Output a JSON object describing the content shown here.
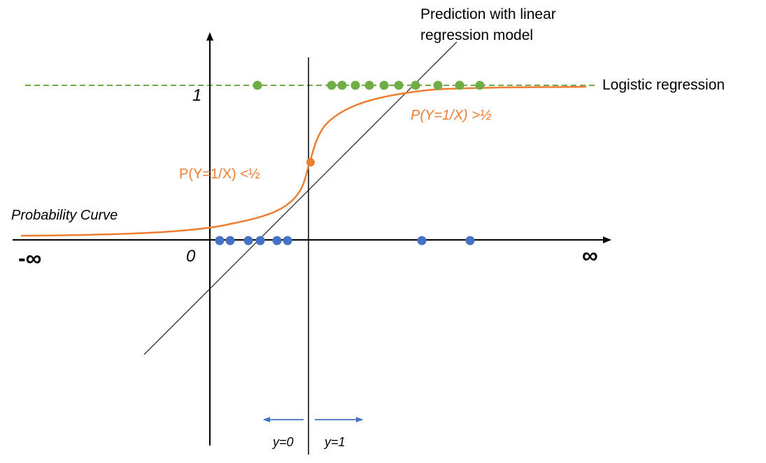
{
  "labels": {
    "linear_model_line1": "Prediction with linear",
    "linear_model_line2": "regression model",
    "logistic_regression": "Logistic regression",
    "y_one": "1",
    "origin": "0",
    "neg_infinity": "-∞",
    "pos_infinity": "∞",
    "probability_curve": "Probability Curve",
    "prob_above_half": "P(Y=1/X) >½",
    "prob_below_half": "P(Y=1/X) <½",
    "y_zero_region": "y=0",
    "y_one_region": "y=1"
  },
  "colors": {
    "green": "#70ad47",
    "orange": "#ed7d31",
    "blue": "#4472c4",
    "axis": "#000000",
    "text": "#000000"
  }
}
